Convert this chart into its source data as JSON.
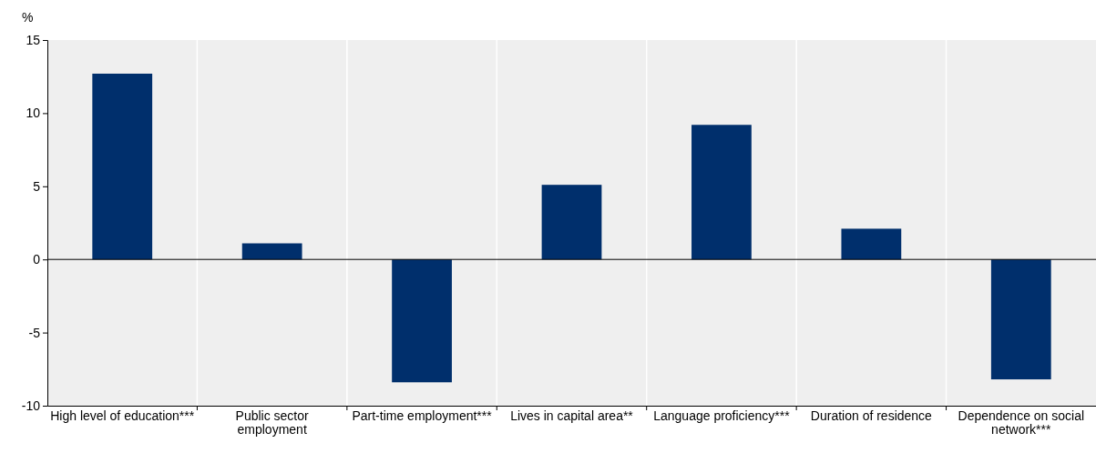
{
  "chart_data": {
    "type": "bar",
    "ylabel": "%",
    "categories": [
      "High level of education***",
      "Public sector employment",
      "Part-time employment***",
      "Lives in capital area**",
      "Language proficiency***",
      "Duration of residence",
      "Dependence on social network***"
    ],
    "values": [
      12.7,
      1.1,
      -8.4,
      5.1,
      9.2,
      2.1,
      -8.2
    ],
    "color": "#002f6c",
    "ylim": [
      -10,
      15
    ],
    "yticks": [
      -10,
      -5,
      0,
      5,
      10,
      15
    ],
    "grid": "x"
  }
}
